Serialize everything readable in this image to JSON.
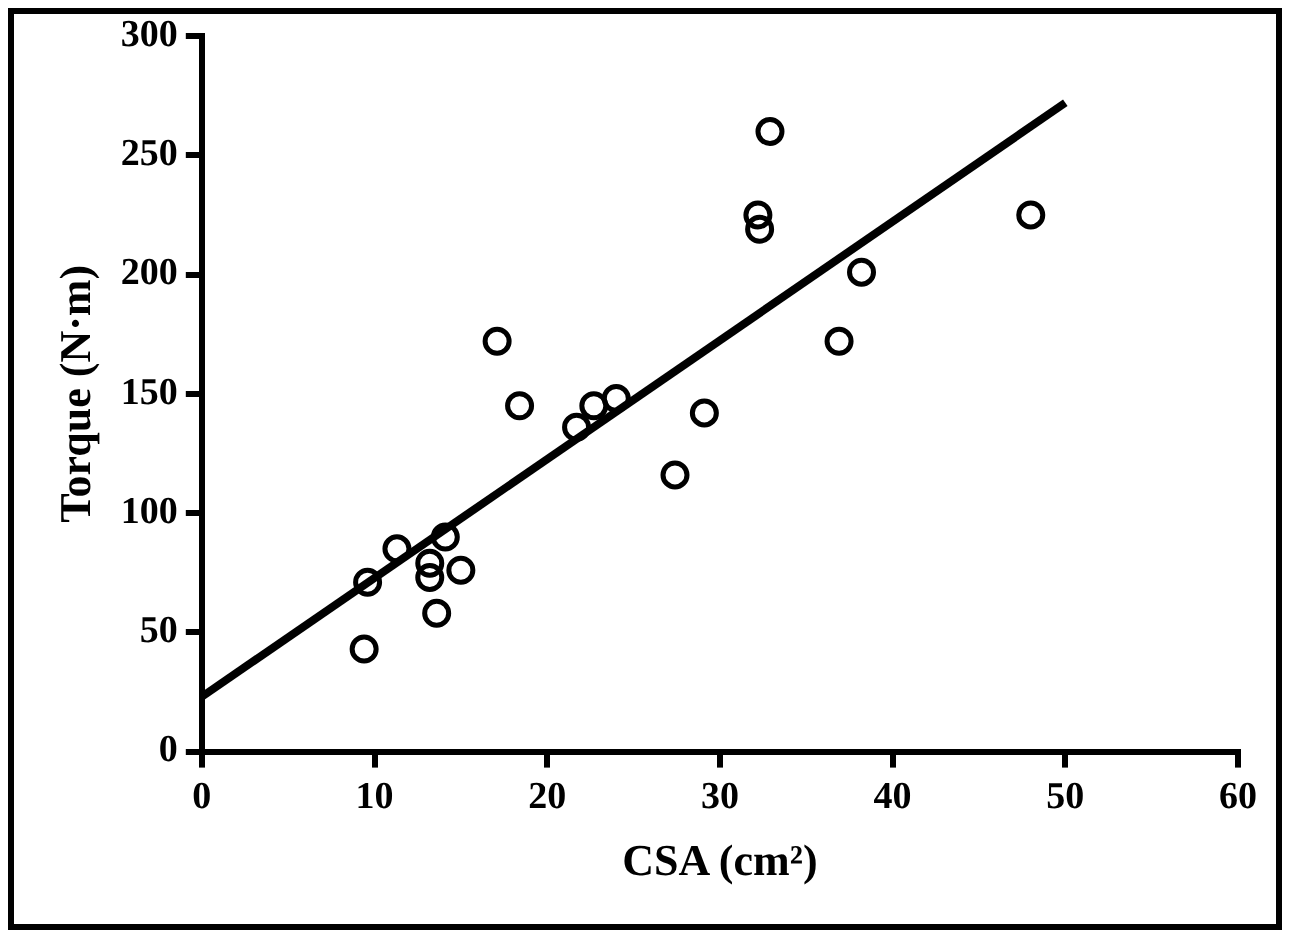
{
  "chart_data": {
    "type": "scatter",
    "xlabel": "CSA (cm²)",
    "ylabel": "Torque (N·m)",
    "xlim": [
      0,
      60
    ],
    "xticks": [
      0,
      10,
      20,
      30,
      40,
      50,
      60
    ],
    "ylim": [
      0,
      300
    ],
    "yticks": [
      0,
      50,
      100,
      150,
      200,
      250,
      300
    ],
    "grid": false,
    "legend": false,
    "series": [
      {
        "marker": "circle",
        "color": "#000000",
        "x": [
          9.4,
          9.6,
          11.3,
          13.2,
          13.2,
          14.1,
          13.6,
          15.0,
          17.1,
          18.4,
          21.7,
          22.7,
          24.0,
          27.4,
          29.1,
          32.2,
          32.3,
          32.9,
          36.9,
          38.2,
          48.0
        ],
        "values": [
          43,
          71,
          85,
          79,
          73,
          90,
          58,
          76,
          172,
          145,
          136,
          145,
          148,
          116,
          142,
          225,
          219,
          260,
          172,
          201,
          225
        ]
      },
      {
        "type": "line",
        "marker": "none",
        "line_style": "solid",
        "color": "#000000",
        "x": [
          0,
          50
        ],
        "values": [
          23,
          272
        ]
      }
    ]
  }
}
